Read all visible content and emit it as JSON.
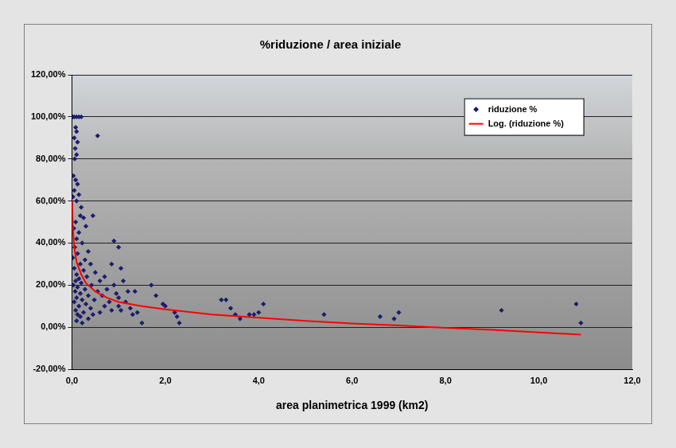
{
  "chart_data": {
    "type": "scatter",
    "title": "%riduzione / area iniziale",
    "x_label": "area planimetrica 1999 (km2)",
    "xlim": [
      0,
      12
    ],
    "xticks": [
      {
        "value": 0,
        "label": "0,0"
      },
      {
        "value": 2,
        "label": "2,0"
      },
      {
        "value": 4,
        "label": "4,0"
      },
      {
        "value": 6,
        "label": "6,0"
      },
      {
        "value": 8,
        "label": "8,0"
      },
      {
        "value": 10,
        "label": "10,0"
      },
      {
        "value": 12,
        "label": "12,0"
      }
    ],
    "ylim": [
      -20,
      120
    ],
    "yticks": [
      {
        "value": -20,
        "label": "-20,00%"
      },
      {
        "value": 0,
        "label": "0,00%"
      },
      {
        "value": 20,
        "label": "20,00%"
      },
      {
        "value": 40,
        "label": "40,00%"
      },
      {
        "value": 60,
        "label": "60,00%"
      },
      {
        "value": 80,
        "label": "80,00%"
      },
      {
        "value": 100,
        "label": "100,00%"
      },
      {
        "value": 120,
        "label": "120,00%"
      }
    ],
    "grid": "y",
    "legend": "upper right",
    "series": [
      {
        "name": "riduzione %",
        "type": "scatter",
        "color": "#1c1c6e",
        "marker": "diamond",
        "x": [
          0.02,
          0.05,
          0.1,
          0.15,
          0.2,
          0.08,
          0.1,
          0.05,
          0.12,
          0.07,
          0.1,
          0.06,
          0.55,
          0.03,
          0.08,
          0.12,
          0.05,
          0.15,
          0.02,
          0.1,
          0.2,
          0.18,
          0.25,
          0.45,
          0.08,
          0.3,
          0.04,
          0.15,
          0.1,
          0.22,
          0.06,
          0.35,
          0.12,
          0.02,
          0.28,
          0.18,
          0.4,
          0.05,
          0.25,
          0.5,
          0.1,
          0.32,
          0.15,
          0.6,
          0.08,
          0.2,
          0.42,
          0.03,
          0.12,
          0.28,
          0.55,
          0.07,
          0.18,
          0.35,
          0.1,
          0.22,
          0.48,
          0.05,
          0.3,
          0.15,
          0.4,
          0.08,
          0.25,
          0.6,
          0.12,
          0.18,
          0.35,
          0.1,
          0.22,
          0.45,
          0.7,
          0.65,
          0.75,
          0.8,
          0.85,
          0.9,
          0.95,
          1.0,
          0.7,
          0.85,
          0.9,
          1.0,
          1.05,
          1.1,
          1.0,
          1.05,
          1.15,
          1.2,
          1.25,
          1.3,
          1.35,
          1.4,
          1.5,
          1.7,
          1.8,
          1.95,
          2.0,
          2.2,
          2.25,
          2.3,
          3.2,
          3.3,
          3.4,
          3.5,
          3.6,
          3.8,
          3.9,
          4.0,
          4.1,
          5.4,
          6.6,
          6.9,
          7.0,
          9.2,
          10.8,
          10.9
        ],
        "values": [
          100,
          100,
          100,
          100,
          100,
          95,
          93,
          90,
          88,
          85,
          82,
          80,
          91,
          72,
          70,
          68,
          65,
          63,
          62,
          60,
          57,
          53,
          52,
          53,
          50,
          48,
          47,
          45,
          42,
          40,
          38,
          36,
          35,
          33,
          32,
          30,
          30,
          28,
          27,
          26,
          25,
          24,
          23,
          22,
          22,
          21,
          20,
          20,
          19,
          18,
          17,
          17,
          16,
          15,
          14,
          13,
          13,
          12,
          11,
          10,
          9,
          8,
          7,
          7,
          6,
          5,
          4,
          3,
          2,
          6,
          10,
          15,
          18,
          12,
          8,
          20,
          16,
          14,
          24,
          30,
          41,
          38,
          28,
          22,
          10,
          8,
          12,
          17,
          9,
          6,
          17,
          7,
          2,
          20,
          15,
          11,
          10,
          7,
          5,
          2,
          13,
          13,
          9,
          6,
          4,
          6,
          6,
          7,
          11,
          6,
          5,
          4,
          7,
          8,
          11,
          2
        ]
      },
      {
        "name": "Log. (riduzione %)",
        "type": "line",
        "color": "#ff0000",
        "marker": "none",
        "x": [
          0.005,
          0.02,
          0.05,
          0.1,
          0.2,
          0.3,
          0.5,
          0.75,
          1.0,
          1.5,
          2.0,
          3.0,
          4.0,
          5.0,
          6.0,
          7.0,
          8.0,
          9.0,
          10.0,
          10.9
        ],
        "values": [
          60,
          47,
          38,
          31,
          25,
          21,
          17,
          14,
          12,
          10,
          8.5,
          6,
          4.5,
          3,
          1.8,
          0.8,
          -0.3,
          -1.3,
          -2.5,
          -3.5
        ]
      }
    ]
  }
}
